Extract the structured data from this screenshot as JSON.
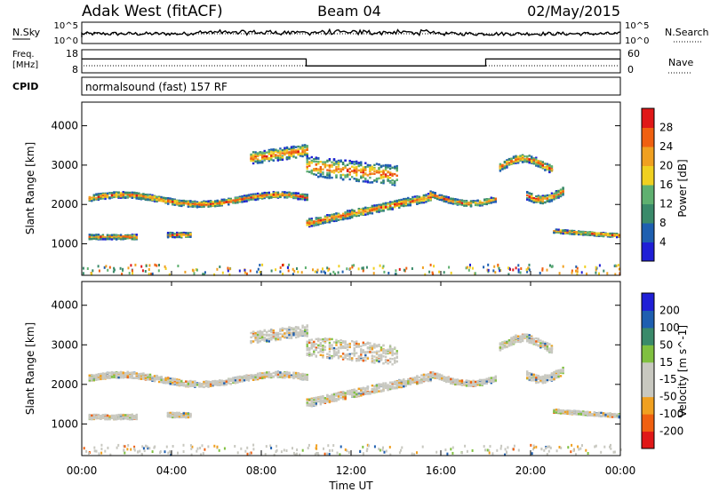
{
  "header": {
    "title": "Adak West (fitACF)",
    "beam": "Beam 04",
    "date": "02/May/2015"
  },
  "panels": {
    "nsky": {
      "label": "N.Sky",
      "right_label": "N.Search",
      "ticks_left": [
        "10^5",
        "10^0"
      ],
      "ticks_right": [
        "10^5",
        "10^0"
      ]
    },
    "freq": {
      "label_line1": "Freq.",
      "label_line2": "[MHz]",
      "ticks_left": [
        "18",
        "8"
      ],
      "right_label": "Nave",
      "ticks_right": [
        "60",
        "0"
      ]
    },
    "cpid": {
      "label": "CPID",
      "text": "normalsound (fast) 157 RF"
    }
  },
  "colors": {
    "power": [
      "#1f1fd6",
      "#1e5fb0",
      "#3a8a6a",
      "#5fb070",
      "#f0d020",
      "#f0a020",
      "#f06010",
      "#e01818"
    ],
    "velocity": [
      "#e01818",
      "#f06010",
      "#f0a020",
      "#c8c8c0",
      "#c8c8c0",
      "#80c040",
      "#3a8a6a",
      "#1e5fb0",
      "#1f1fd6"
    ]
  },
  "chart_data": [
    {
      "type": "heatmap",
      "quantity": "power",
      "ylabel": "Slant Range [km]",
      "ylim": [
        200,
        4600
      ],
      "xlim_hours": [
        0,
        24
      ],
      "yticks": [
        "1000",
        "2000",
        "3000",
        "4000"
      ],
      "colorbar": {
        "label": "Power [dB]",
        "ticks": [
          "4",
          "8",
          "12",
          "16",
          "20",
          "24",
          "28"
        ]
      }
    },
    {
      "type": "heatmap",
      "quantity": "velocity",
      "ylabel": "Slant Range [km]",
      "ylim": [
        200,
        4600
      ],
      "xlim_hours": [
        0,
        24
      ],
      "yticks": [
        "1000",
        "2000",
        "3000",
        "4000"
      ],
      "colorbar": {
        "label": "Velocity [m s^-1]",
        "ticks": [
          "200",
          "100",
          "50",
          "15",
          "-15",
          "-50",
          "-100",
          "-200"
        ]
      }
    }
  ],
  "xaxis": {
    "label": "Time UT",
    "ticks": [
      "00:00",
      "04:00",
      "08:00",
      "12:00",
      "16:00",
      "20:00",
      "00:00"
    ],
    "tick_hours": [
      0,
      4,
      8,
      12,
      16,
      20,
      24
    ]
  },
  "freq_series": [
    {
      "from": 0,
      "to": 10,
      "value": 14
    },
    {
      "from": 10,
      "to": 18,
      "value": 11
    },
    {
      "from": 18,
      "to": 24,
      "value": 14
    }
  ]
}
